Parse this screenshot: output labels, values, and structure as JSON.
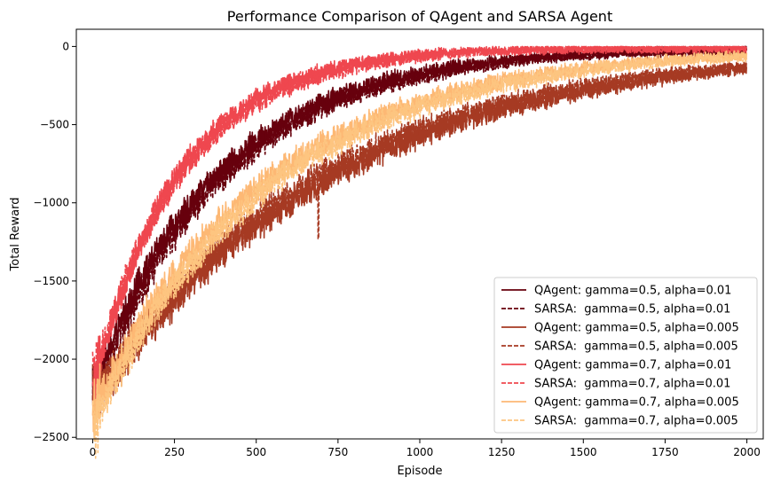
{
  "chart_data": {
    "type": "line",
    "title": "Performance Comparison of QAgent and SARSA Agent",
    "xlabel": "Episode",
    "ylabel": "Total Reward",
    "xlim": [
      -50,
      2050
    ],
    "ylim": [
      -2510,
      110
    ],
    "xticks": [
      0,
      250,
      500,
      750,
      1000,
      1250,
      1500,
      1750,
      2000
    ],
    "xtick_labels": [
      "0",
      "250",
      "500",
      "750",
      "1000",
      "1250",
      "1500",
      "1750",
      "2000"
    ],
    "yticks": [
      0,
      -500,
      -1000,
      -1500,
      -2000,
      -2500
    ],
    "ytick_labels": [
      "0",
      "−500",
      "−1000",
      "−1500",
      "−2000",
      "−2500"
    ],
    "grid": false,
    "legend_position": "bottom-right",
    "n_episodes": 2000,
    "series": [
      {
        "name": "QAgent: gamma=0.5, alpha=0.01",
        "color": "#67000d",
        "style": "solid",
        "start": -2150,
        "tau": 380,
        "noise": 95,
        "converge_episode": 1350
      },
      {
        "name": "SARSA:  gamma=0.5, alpha=0.01",
        "color": "#67000d",
        "style": "dashed",
        "start": -2200,
        "tau": 390,
        "noise": 100,
        "converge_episode": 1380
      },
      {
        "name": "QAgent: gamma=0.5, alpha=0.005",
        "color": "#a63a23",
        "style": "solid",
        "start": -2250,
        "tau": 700,
        "noise": 110,
        "converge_episode": 2000
      },
      {
        "name": "SARSA:  gamma=0.5, alpha=0.005",
        "color": "#a63a23",
        "style": "dashed",
        "start": -2200,
        "tau": 680,
        "noise": 110,
        "converge_episode": 2000,
        "spike": {
          "x": 690,
          "y": -1230
        }
      },
      {
        "name": "QAgent: gamma=0.7, alpha=0.01",
        "color": "#ef474f",
        "style": "solid",
        "start": -2150,
        "tau": 260,
        "noise": 85,
        "converge_episode": 1150
      },
      {
        "name": "SARSA:  gamma=0.7, alpha=0.01",
        "color": "#ef474f",
        "style": "dashed",
        "start": -2100,
        "tau": 270,
        "noise": 85,
        "converge_episode": 1180
      },
      {
        "name": "QAgent: gamma=0.7, alpha=0.005",
        "color": "#fdb874",
        "style": "solid",
        "start": -2300,
        "tau": 520,
        "noise": 100,
        "converge_episode": 1750
      },
      {
        "name": "SARSA:  gamma=0.7, alpha=0.005",
        "color": "#fdc580",
        "style": "dashed",
        "start": -2380,
        "tau": 530,
        "noise": 100,
        "converge_episode": 1800
      }
    ]
  }
}
